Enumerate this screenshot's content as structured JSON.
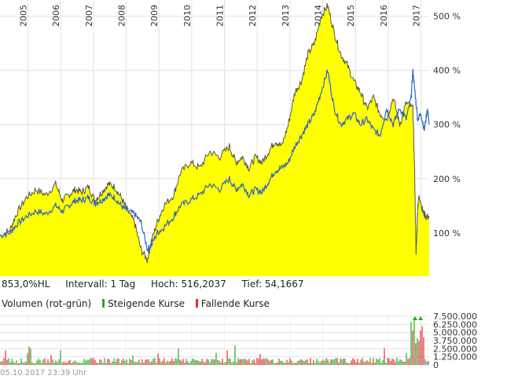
{
  "chart_data": [
    {
      "type": "area",
      "x_labels": [
        "2005",
        "2006",
        "2007",
        "2008",
        "2009",
        "2010",
        "2011",
        "2012",
        "2013",
        "2014",
        "2015",
        "2016",
        "2017"
      ],
      "y_ticks": [
        "100 %",
        "200 %",
        "300 %",
        "400 %",
        "500 %"
      ],
      "ylim": [
        20,
        530
      ],
      "grid": true,
      "series": [
        {
          "color": "#ffff00",
          "line_color": "#555555",
          "x": [
            2004.5,
            2004.8,
            2005.0,
            2005.3,
            2005.6,
            2005.9,
            2006.2,
            2006.4,
            2006.6,
            2006.8,
            2007.0,
            2007.2,
            2007.4,
            2007.6,
            2007.8,
            2008.0,
            2008.2,
            2008.4,
            2008.6,
            2008.8,
            2009.0,
            2009.1,
            2009.3,
            2009.5,
            2009.8,
            2010.0,
            2010.3,
            2010.6,
            2010.9,
            2011.2,
            2011.5,
            2011.7,
            2011.9,
            2012.1,
            2012.3,
            2012.5,
            2012.7,
            2012.9,
            2013.1,
            2013.3,
            2013.5,
            2013.7,
            2013.9,
            2014.1,
            2014.3,
            2014.5,
            2014.7,
            2014.9,
            2015.1,
            2015.3,
            2015.5,
            2015.7,
            2015.9,
            2016.1,
            2016.3,
            2016.5,
            2016.7,
            2016.9,
            2017.1,
            2017.15,
            2017.2,
            2017.25,
            2017.3,
            2017.4,
            2017.5,
            2017.6
          ],
          "values": [
            95,
            105,
            135,
            165,
            180,
            170,
            190,
            160,
            170,
            180,
            175,
            185,
            160,
            175,
            190,
            185,
            165,
            140,
            120,
            70,
            50,
            80,
            120,
            150,
            170,
            210,
            230,
            220,
            250,
            240,
            260,
            230,
            240,
            220,
            240,
            230,
            250,
            270,
            260,
            300,
            360,
            380,
            430,
            450,
            500,
            520,
            470,
            430,
            410,
            380,
            360,
            330,
            350,
            320,
            310,
            350,
            300,
            340,
            330,
            230,
            60,
            150,
            170,
            140,
            130,
            130
          ]
        },
        {
          "color": "#3366bb",
          "x": [
            2004.5,
            2004.8,
            2005.0,
            2005.3,
            2005.6,
            2005.9,
            2006.2,
            2006.4,
            2006.6,
            2006.8,
            2007.0,
            2007.2,
            2007.4,
            2007.6,
            2007.8,
            2008.0,
            2008.2,
            2008.4,
            2008.6,
            2008.8,
            2009.0,
            2009.1,
            2009.3,
            2009.5,
            2009.8,
            2010.0,
            2010.3,
            2010.6,
            2010.9,
            2011.2,
            2011.5,
            2011.7,
            2011.9,
            2012.1,
            2012.3,
            2012.5,
            2012.7,
            2012.9,
            2013.1,
            2013.3,
            2013.5,
            2013.7,
            2013.9,
            2014.1,
            2014.3,
            2014.5,
            2014.7,
            2014.9,
            2015.1,
            2015.3,
            2015.5,
            2015.7,
            2015.9,
            2016.1,
            2016.3,
            2016.5,
            2016.7,
            2016.9,
            2017.05,
            2017.1,
            2017.15,
            2017.25,
            2017.35,
            2017.45,
            2017.55,
            2017.6
          ],
          "values": [
            95,
            100,
            115,
            130,
            140,
            135,
            150,
            140,
            150,
            160,
            160,
            165,
            155,
            160,
            170,
            165,
            150,
            140,
            135,
            120,
            70,
            75,
            100,
            110,
            130,
            150,
            160,
            170,
            190,
            180,
            200,
            180,
            190,
            170,
            180,
            175,
            195,
            215,
            220,
            230,
            260,
            280,
            300,
            320,
            360,
            400,
            330,
            300,
            310,
            320,
            300,
            310,
            290,
            280,
            330,
            300,
            330,
            310,
            350,
            400,
            370,
            310,
            320,
            290,
            330,
            300
          ]
        }
      ]
    },
    {
      "type": "bar",
      "title": "Volumen (rot-grün)",
      "y_ticks": [
        "7.500.000",
        "6.250.000",
        "5.000.000",
        "3.750.000",
        "2.500.000",
        "1.250.000",
        "0"
      ],
      "ylim": [
        0,
        7500000
      ]
    }
  ],
  "info": {
    "change": "853,0%HL",
    "interval": "Intervall: 1 Tag",
    "high": "Hoch: 516,2037",
    "low": "Tief: 54,1667"
  },
  "legend": {
    "title": "Volumen (rot-grün)",
    "up": "Steigende Kurse",
    "up_color": "#22aa22",
    "down": "Fallende Kurse",
    "down_color": "#dd3333"
  },
  "timestamp": "05.10.2017 23:39 Uhr"
}
